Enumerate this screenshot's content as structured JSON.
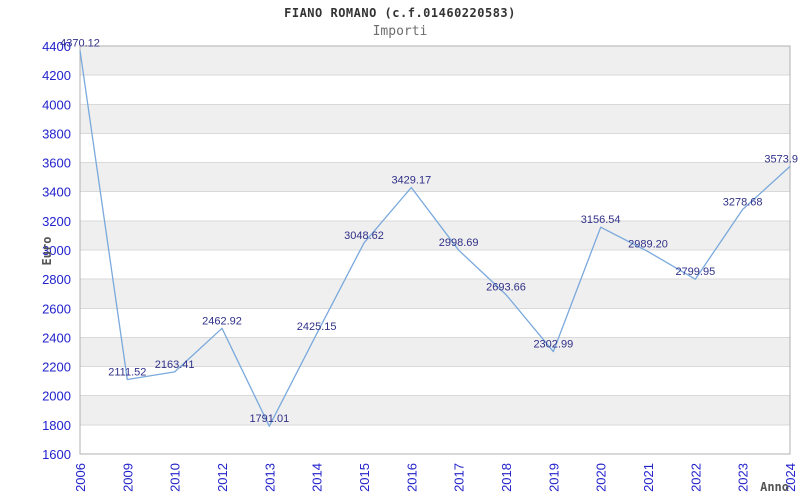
{
  "title": "FIANO ROMANO (c.f.01460220583)",
  "subtitle": "Importi",
  "colors": {
    "line": "#7aa9dc",
    "axis_tick": "#2222cc",
    "data_label": "#303088",
    "band": "#efefef",
    "grid": "#d9d9d9",
    "plot_border": "#b0b0b0",
    "title": "#333333",
    "subtitle": "#6e6e6e",
    "axis_title": "#555555"
  },
  "chart_data": {
    "type": "line",
    "title": "FIANO ROMANO (c.f.01460220583)",
    "subtitle": "Importi",
    "xlabel": "Anno",
    "ylabel": "Euro",
    "categories": [
      "2006",
      "2009",
      "2010",
      "2012",
      "2013",
      "2014",
      "2015",
      "2016",
      "2017",
      "2018",
      "2019",
      "2020",
      "2021",
      "2022",
      "2023",
      "2024"
    ],
    "values": [
      4370.12,
      2111.52,
      2163.41,
      2462.92,
      1791.01,
      2425.15,
      3048.62,
      3429.17,
      2998.69,
      2693.66,
      2302.99,
      3156.54,
      2989.2,
      2799.95,
      3278.68,
      3573.9
    ],
    "point_labels": [
      "4370.12",
      "2111.52",
      "2163.41",
      "2462.92",
      "1791.01",
      "2425.15",
      "3048.62",
      "3429.17",
      "2998.69",
      "2693.66",
      "2302.99",
      "3156.54",
      "2989.20",
      "2799.95",
      "3278.68",
      "3573.9"
    ],
    "ylim": [
      1600,
      4400
    ],
    "y_ticks": [
      1600,
      1800,
      2000,
      2200,
      2400,
      2600,
      2800,
      3000,
      3200,
      3400,
      3600,
      3800,
      4000,
      4200,
      4400
    ],
    "y_tick_interval": 200,
    "grid": true,
    "banded_rows": true,
    "legend": "none"
  }
}
